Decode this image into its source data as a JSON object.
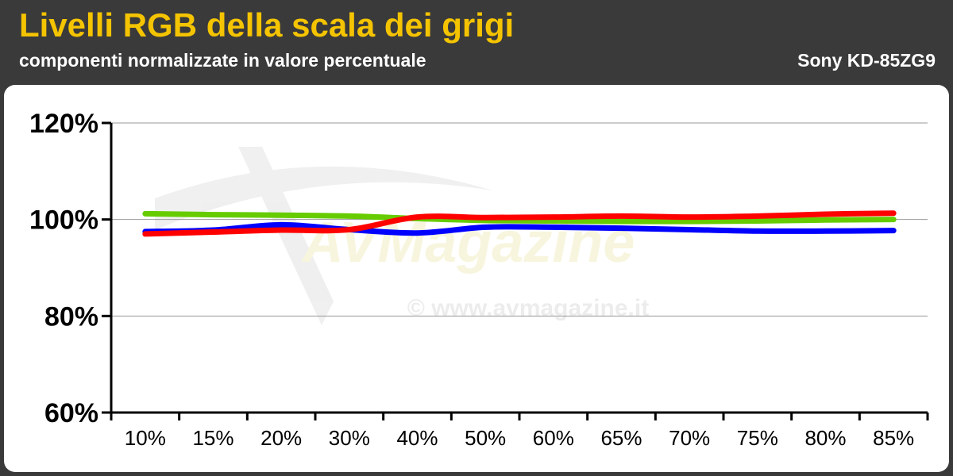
{
  "header": {
    "title": "Livelli RGB della scala dei grigi",
    "subtitle": "componenti normalizzate in valore percentuale",
    "model": "Sony KD-85ZG9"
  },
  "watermark": {
    "brand": "AVMagazine",
    "site": "© www.avmagazine.it"
  },
  "colors": {
    "background": "#3a3a3a",
    "title": "#f5c400",
    "red": "#ff0000",
    "green": "#66cc00",
    "blue": "#0000ff"
  },
  "chart_data": {
    "type": "line",
    "categories": [
      "10%",
      "15%",
      "20%",
      "30%",
      "40%",
      "50%",
      "60%",
      "65%",
      "70%",
      "75%",
      "80%",
      "85%"
    ],
    "ylim": [
      60,
      120
    ],
    "yticks": [
      60,
      80,
      100,
      120
    ],
    "ytick_labels": [
      "60%",
      "80%",
      "100%",
      "120%"
    ],
    "grid": true,
    "series": [
      {
        "color": "#66cc00",
        "values": [
          101.2,
          101.0,
          100.9,
          100.7,
          100.2,
          99.8,
          99.7,
          99.6,
          99.6,
          99.7,
          99.9,
          100.0
        ]
      },
      {
        "color": "#0000ff",
        "values": [
          97.5,
          97.8,
          98.9,
          97.9,
          97.2,
          98.4,
          98.4,
          98.2,
          97.9,
          97.6,
          97.6,
          97.7
        ]
      },
      {
        "color": "#ff0000",
        "values": [
          97.0,
          97.4,
          97.8,
          97.9,
          100.5,
          100.4,
          100.5,
          100.7,
          100.5,
          100.7,
          101.1,
          101.3
        ]
      }
    ]
  }
}
